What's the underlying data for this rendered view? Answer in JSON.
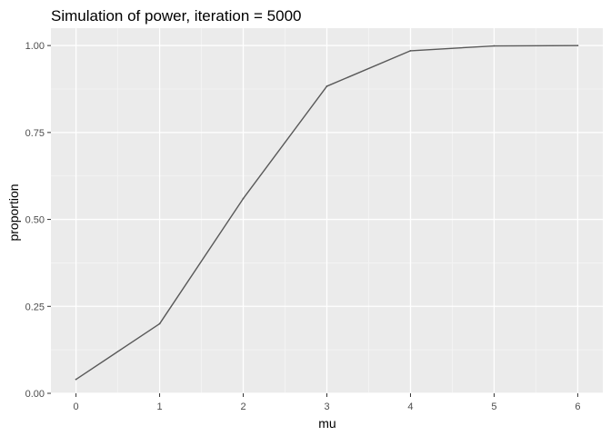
{
  "chart_data": {
    "type": "line",
    "title": "Simulation of power, iteration = 5000",
    "xlabel": "mu",
    "ylabel": "proportion",
    "x": [
      0,
      1,
      2,
      3,
      4,
      5,
      6
    ],
    "series": [
      {
        "values": [
          0.04,
          0.2,
          0.56,
          0.883,
          0.985,
          0.999,
          1.0
        ]
      }
    ],
    "xlim": [
      -0.3,
      6.3
    ],
    "ylim": [
      0,
      1.05
    ],
    "x_ticks": [
      0,
      1,
      2,
      3,
      4,
      5,
      6
    ],
    "x_tick_labels": [
      "0",
      "1",
      "2",
      "3",
      "4",
      "5",
      "6"
    ],
    "y_ticks": [
      0,
      0.25,
      0.5,
      0.75,
      1.0
    ],
    "y_tick_labels": [
      "0.00",
      "0.25",
      "0.50",
      "0.75",
      "1.00"
    ],
    "grid": true,
    "legend": "none",
    "colors": {
      "panel_background": "#ebebeb",
      "grid_major": "#ffffff",
      "grid_minor": "#f5f5f5",
      "line": "#595959",
      "tick": "#333333"
    }
  }
}
